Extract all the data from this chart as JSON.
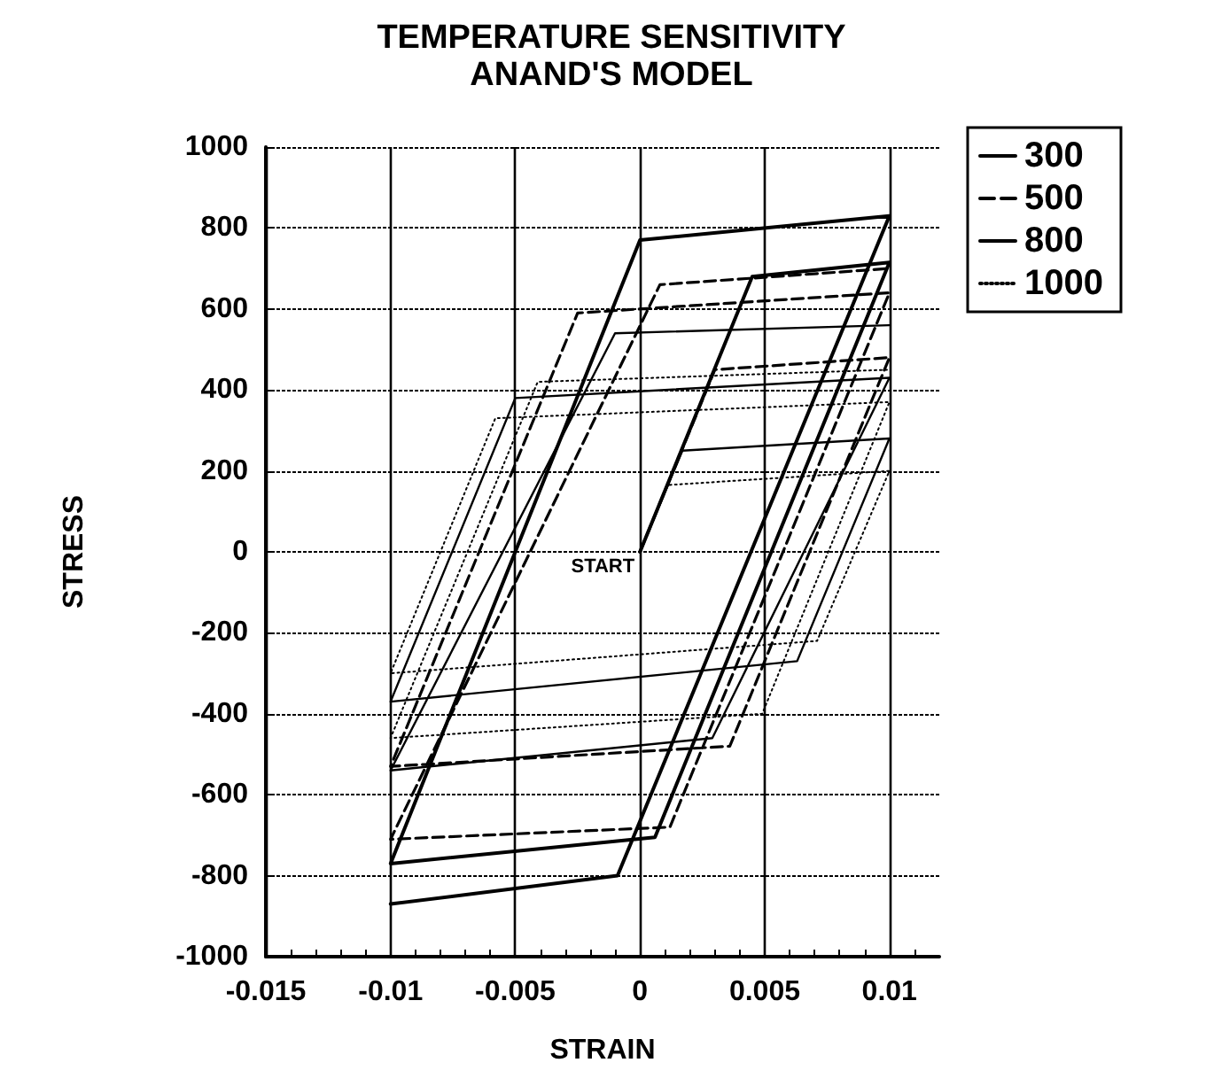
{
  "chart_data": {
    "type": "line",
    "title": "TEMPERATURE SENSITIVITY\nANAND'S MODEL",
    "xlabel": "STRAIN",
    "ylabel": "STRESS",
    "xlim": [
      -0.015,
      0.012
    ],
    "xticks": [
      -0.015,
      -0.01,
      -0.005,
      0,
      0.005,
      0.01
    ],
    "ylim": [
      -1000,
      1000
    ],
    "yticks": [
      -1000,
      -800,
      -600,
      -400,
      -200,
      0,
      200,
      400,
      600,
      800,
      1000
    ],
    "grid": true,
    "legend": "top right",
    "marker": "none",
    "annotations": [
      {
        "text": "START",
        "x": 0,
        "y": 0
      }
    ],
    "series": [
      {
        "name": "300",
        "color": "#000000",
        "line_style": "solid",
        "x": [
          0,
          0.0045,
          0.01,
          0.0006,
          -0.01,
          0,
          0.01,
          -0.0009,
          -0.01
        ],
        "values": [
          0,
          680,
          715,
          -705,
          -770,
          770,
          830,
          -800,
          -870
        ]
      },
      {
        "name": "500",
        "color": "#000000",
        "line_style": "dashed",
        "x": [
          0,
          0.003,
          0.01,
          0.0036,
          -0.01,
          -0.0025,
          0.01,
          0.0012,
          -0.01,
          0.0008,
          0.01
        ],
        "values": [
          0,
          450,
          480,
          -480,
          -530,
          590,
          640,
          -680,
          -710,
          660,
          700
        ]
      },
      {
        "name": "800",
        "color": "#000000",
        "line_style": "solid",
        "x": [
          0,
          0.0017,
          0.01,
          0.0063,
          -0.01,
          -0.005,
          0.01,
          0.0029,
          -0.01,
          -0.001,
          0.01
        ],
        "values": [
          0,
          250,
          280,
          -270,
          -370,
          380,
          430,
          -460,
          -540,
          540,
          560
        ]
      },
      {
        "name": "1000",
        "color": "#000000",
        "line_style": "dotted",
        "x": [
          0,
          0.0011,
          0.01,
          0.0071,
          -0.01,
          -0.0058,
          0.01,
          0.0049,
          -0.01,
          -0.0041,
          0.01
        ],
        "values": [
          0,
          165,
          200,
          -220,
          -300,
          330,
          370,
          -400,
          -460,
          420,
          450
        ]
      }
    ]
  }
}
